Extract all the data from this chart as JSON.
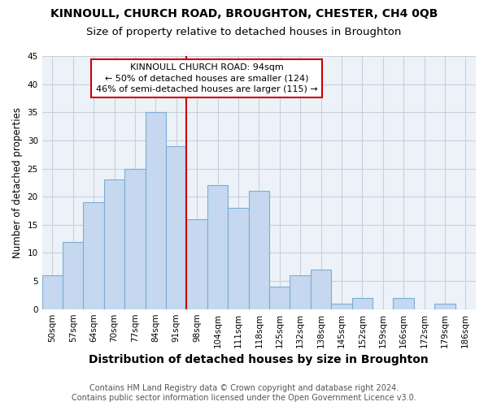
{
  "title": "KINNOULL, CHURCH ROAD, BROUGHTON, CHESTER, CH4 0QB",
  "subtitle": "Size of property relative to detached houses in Broughton",
  "xlabel": "Distribution of detached houses by size in Broughton",
  "ylabel": "Number of detached properties",
  "categories": [
    "50sqm",
    "57sqm",
    "64sqm",
    "70sqm",
    "77sqm",
    "84sqm",
    "91sqm",
    "98sqm",
    "104sqm",
    "111sqm",
    "118sqm",
    "125sqm",
    "132sqm",
    "138sqm",
    "145sqm",
    "152sqm",
    "159sqm",
    "166sqm",
    "172sqm",
    "179sqm",
    "186sqm"
  ],
  "values": [
    6,
    12,
    19,
    23,
    25,
    35,
    29,
    16,
    22,
    18,
    21,
    4,
    6,
    7,
    1,
    2,
    0,
    2,
    0,
    1,
    0
  ],
  "bar_color": "#c5d8ef",
  "bar_edge_color": "#7badd4",
  "vline_x_index": 6.5,
  "vline_color": "#cc0000",
  "annotation_text": "KINNOULL CHURCH ROAD: 94sqm\n← 50% of detached houses are smaller (124)\n46% of semi-detached houses are larger (115) →",
  "annotation_box_color": "white",
  "annotation_box_edge_color": "#cc0000",
  "ylim": [
    0,
    45
  ],
  "yticks": [
    0,
    5,
    10,
    15,
    20,
    25,
    30,
    35,
    40,
    45
  ],
  "footnote": "Contains HM Land Registry data © Crown copyright and database right 2024.\nContains public sector information licensed under the Open Government Licence v3.0.",
  "background_color": "#edf2f9",
  "grid_color": "#c8d0de",
  "title_fontsize": 10,
  "subtitle_fontsize": 9.5,
  "xlabel_fontsize": 10,
  "ylabel_fontsize": 8.5,
  "tick_fontsize": 7.5,
  "footnote_fontsize": 7,
  "annotation_fontsize": 8
}
